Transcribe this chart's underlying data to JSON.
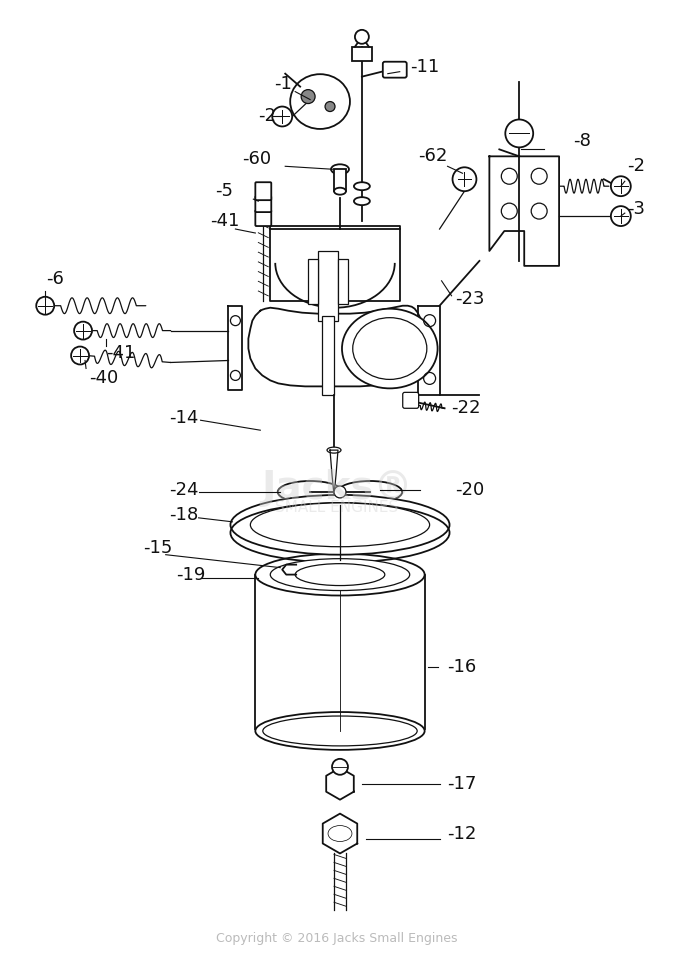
{
  "background_color": "#ffffff",
  "line_color": "#111111",
  "label_color": "#111111",
  "copyright_color": "#bbbbbb",
  "watermark_color": "#cccccc",
  "copyright": "Copyright © 2016 Jacks Small Engines",
  "figsize": [
    6.75,
    9.57
  ],
  "dpi": 100
}
